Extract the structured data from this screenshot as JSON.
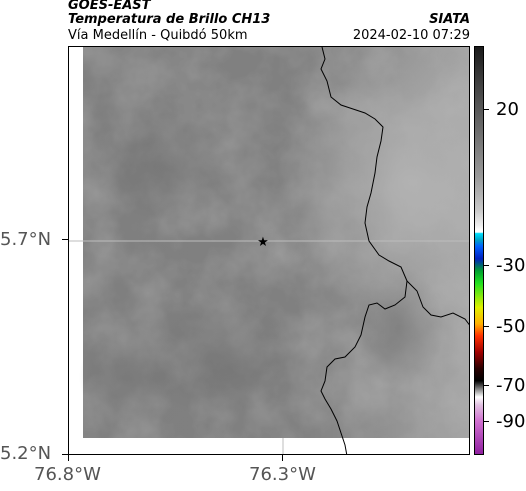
{
  "header": {
    "satellite": "GOES-EAST",
    "product": "Temperatura de Brillo CH13",
    "agency": "SIATA",
    "region": "Vía Medellín - Quibdó 50km",
    "timestamp": "2024-02-10 07:29"
  },
  "map": {
    "lat_ticks": [
      {
        "value": 5.7,
        "label": "5.7°N"
      },
      {
        "value": 5.2,
        "label": "5.2°N"
      }
    ],
    "lon_ticks": [
      {
        "value": -76.8,
        "label": "76.8°W"
      },
      {
        "value": -76.3,
        "label": "76.3°W"
      }
    ],
    "marker": {
      "symbol": "star",
      "lat": 5.7,
      "lon": -76.32
    },
    "boundary_color": "#000000"
  },
  "colorbar": {
    "ticks": [
      {
        "value": 20,
        "label": "20"
      },
      {
        "value": -30,
        "label": "-30"
      },
      {
        "value": -50,
        "label": "-50"
      },
      {
        "value": -70,
        "label": "-70"
      },
      {
        "value": -90,
        "label": "-90"
      }
    ]
  }
}
